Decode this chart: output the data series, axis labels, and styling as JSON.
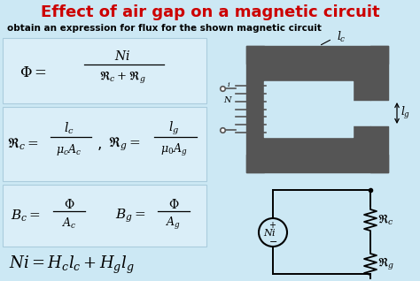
{
  "title": "Effect of air gap on a magnetic circuit",
  "subtitle": "obtain an expression for flux for the shown magnetic circuit",
  "bg_color": "#cce8f4",
  "title_color": "#cc0000",
  "text_color": "#000000",
  "box_facecolor": "#daeef8",
  "figsize": [
    4.74,
    3.18
  ],
  "dpi": 100
}
